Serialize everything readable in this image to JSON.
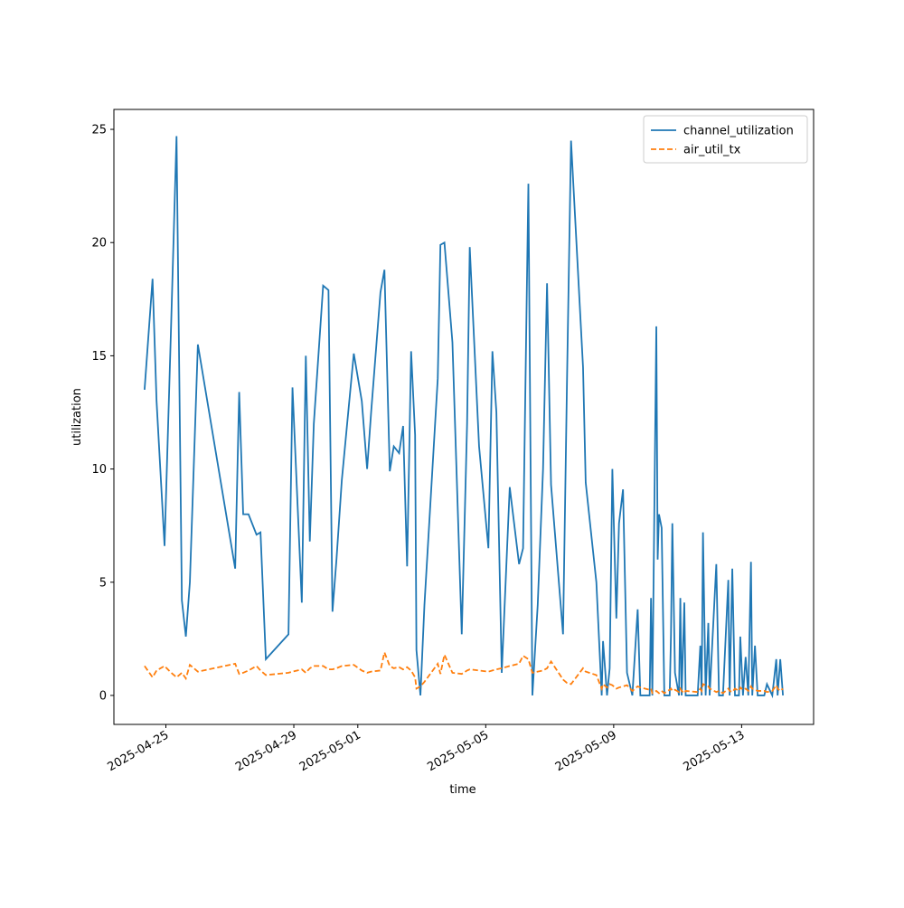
{
  "chart_data": {
    "type": "line",
    "xlabel": "time",
    "ylabel": "utilization",
    "x": [
      "2025-04-24T08:00",
      "2025-04-24T14:00",
      "2025-04-24T17:00",
      "2025-04-24T23:00",
      "2025-04-25T04:00",
      "2025-04-25T08:00",
      "2025-04-25T12:00",
      "2025-04-25T15:00",
      "2025-04-25T18:00",
      "2025-04-26T00:00",
      "2025-04-27T04:00",
      "2025-04-27T07:00",
      "2025-04-27T10:00",
      "2025-04-27T14:00",
      "2025-04-27T20:00",
      "2025-04-27T23:00",
      "2025-04-28T03:00",
      "2025-04-28T20:00",
      "2025-04-28T23:00",
      "2025-04-29T06:00",
      "2025-04-29T09:00",
      "2025-04-29T12:00",
      "2025-04-29T15:00",
      "2025-04-29T22:00",
      "2025-04-30T02:00",
      "2025-04-30T05:00",
      "2025-04-30T08:00",
      "2025-04-30T12:00",
      "2025-04-30T21:00",
      "2025-05-01T03:00",
      "2025-05-01T07:00",
      "2025-05-01T10:00",
      "2025-05-01T17:00",
      "2025-05-01T20:00",
      "2025-05-02T00:00",
      "2025-05-02T03:00",
      "2025-05-02T07:00",
      "2025-05-02T10:00",
      "2025-05-02T13:00",
      "2025-05-02T16:00",
      "2025-05-02T19:00",
      "2025-05-02T20:00",
      "2025-05-02T23:00",
      "2025-05-03T02:00",
      "2025-05-03T12:00",
      "2025-05-03T14:00",
      "2025-05-03T17:00",
      "2025-05-03T23:00",
      "2025-05-04T06:00",
      "2025-05-04T10:00",
      "2025-05-04T12:00",
      "2025-05-04T19:00",
      "2025-05-05T02:00",
      "2025-05-05T05:00",
      "2025-05-05T08:00",
      "2025-05-05T12:00",
      "2025-05-05T18:00",
      "2025-05-06T01:00",
      "2025-05-06T04:00",
      "2025-05-06T08:00",
      "2025-05-06T11:00",
      "2025-05-06T15:00",
      "2025-05-06T19:00",
      "2025-05-06T22:00",
      "2025-05-07T01:00",
      "2025-05-07T10:00",
      "2025-05-07T13:00",
      "2025-05-07T16:00",
      "2025-05-08T01:00",
      "2025-05-08T03:00",
      "2025-05-08T11:00",
      "2025-05-08T15:00",
      "2025-05-08T16:00",
      "2025-05-08T19:00",
      "2025-05-08T21:00",
      "2025-05-08T23:00",
      "2025-05-09T02:00",
      "2025-05-09T04:00",
      "2025-05-09T07:00",
      "2025-05-09T10:00",
      "2025-05-09T14:00",
      "2025-05-09T18:00",
      "2025-05-09T20:00",
      "2025-05-10T03:00",
      "2025-05-10T04:00",
      "2025-05-10T05:00",
      "2025-05-10T08:00",
      "2025-05-10T09:00",
      "2025-05-10T10:00",
      "2025-05-10T12:00",
      "2025-05-10T14:00",
      "2025-05-10T18:00",
      "2025-05-10T19:00",
      "2025-05-10T20:00",
      "2025-05-10T22:00",
      "2025-05-11T01:00",
      "2025-05-11T02:00",
      "2025-05-11T03:00",
      "2025-05-11T05:00",
      "2025-05-11T06:00",
      "2025-05-11T15:00",
      "2025-05-11T17:00",
      "2025-05-11T18:00",
      "2025-05-11T19:00",
      "2025-05-11T21:00",
      "2025-05-11T23:00",
      "2025-05-12T00:00",
      "2025-05-12T05:00",
      "2025-05-12T07:00",
      "2025-05-12T10:00",
      "2025-05-12T14:00",
      "2025-05-12T15:00",
      "2025-05-12T17:00",
      "2025-05-12T19:00",
      "2025-05-12T22:00",
      "2025-05-12T23:00",
      "2025-05-13T01:00",
      "2025-05-13T03:00",
      "2025-05-13T05:00",
      "2025-05-13T07:00",
      "2025-05-13T08:00",
      "2025-05-13T10:00",
      "2025-05-13T12:00",
      "2025-05-13T17:00",
      "2025-05-13T19:00",
      "2025-05-13T23:00",
      "2025-05-14T02:00",
      "2025-05-14T03:00",
      "2025-05-14T05:00",
      "2025-05-14T07:00"
    ],
    "series": [
      {
        "name": "channel_utilization",
        "color": "#1f77b4",
        "linestyle": "solid",
        "values": [
          13.5,
          18.4,
          13,
          6.6,
          16.5,
          24.7,
          4.2,
          2.6,
          5,
          15.5,
          5.6,
          13.4,
          8,
          8,
          7.1,
          7.2,
          1.6,
          2.7,
          13.6,
          4.1,
          15,
          6.8,
          12,
          18.1,
          17.9,
          3.7,
          6,
          9.5,
          15.1,
          13,
          10,
          12.5,
          17.8,
          18.8,
          9.9,
          11,
          10.7,
          11.9,
          5.7,
          15.2,
          11.5,
          2,
          0,
          4,
          14,
          19.9,
          20,
          15.6,
          2.7,
          12,
          19.8,
          11,
          6.5,
          15.2,
          12.5,
          1,
          9.2,
          5.8,
          6.5,
          22.6,
          0,
          4,
          10,
          18.2,
          9.3,
          2.7,
          14,
          24.5,
          14.5,
          9.4,
          5,
          0,
          2.4,
          0,
          1.2,
          10,
          3.4,
          7.6,
          9.1,
          1,
          0,
          3.8,
          0,
          0,
          4.3,
          0,
          16.3,
          6,
          8,
          7.4,
          0,
          0,
          2.7,
          7.6,
          1,
          0,
          4.3,
          0,
          4.1,
          0,
          0,
          2.2,
          0,
          7.2,
          0,
          3.2,
          0,
          5.8,
          0,
          0,
          5.1,
          0,
          5.6,
          0,
          0,
          2.6,
          0,
          1.7,
          0,
          5.9,
          0,
          2.2,
          0,
          0,
          0.5,
          0,
          1.6,
          0,
          1.6,
          0
        ]
      },
      {
        "name": "air_util_tx",
        "color": "#ff7f0e",
        "linestyle": "dashed",
        "values": [
          1.3,
          0.8,
          1.1,
          1.3,
          1.0,
          0.8,
          1.0,
          0.75,
          1.35,
          1.05,
          1.4,
          0.95,
          1.0,
          1.1,
          1.3,
          1.1,
          0.9,
          1.0,
          1.05,
          1.15,
          1.0,
          1.2,
          1.3,
          1.3,
          1.15,
          1.15,
          1.2,
          1.3,
          1.35,
          1.1,
          1.0,
          1.05,
          1.1,
          1.9,
          1.3,
          1.2,
          1.25,
          1.15,
          1.25,
          1.1,
          0.8,
          0.3,
          0.4,
          0.6,
          1.4,
          0.95,
          1.8,
          1.0,
          0.95,
          1.1,
          1.15,
          1.1,
          1.05,
          1.1,
          1.15,
          1.2,
          1.3,
          1.4,
          1.75,
          1.6,
          1.0,
          1.05,
          1.1,
          1.2,
          1.5,
          0.7,
          0.55,
          0.5,
          1.2,
          1.05,
          0.9,
          0.3,
          0.5,
          0.35,
          0.5,
          0.45,
          0.3,
          0.35,
          0.4,
          0.45,
          0.2,
          0.4,
          0.35,
          0.25,
          0.3,
          0.1,
          0.2,
          0.15,
          0.1,
          0.2,
          0.1,
          0.25,
          0.3,
          0.2,
          0.25,
          0.15,
          0.3,
          0.2,
          0.1,
          0.2,
          0.15,
          0.3,
          0.2,
          0.5,
          0.45,
          0.4,
          0.3,
          0.15,
          0.2,
          0.1,
          0.3,
          0.2,
          0.15,
          0.3,
          0.2,
          0.35,
          0.25,
          0.3,
          0.2,
          0.4,
          0.3,
          0.25,
          0.2,
          0.2,
          0.15,
          0.2,
          0.45,
          0.3,
          0.2,
          0.3
        ]
      }
    ],
    "xlim": [
      "2025-04-23T09:00",
      "2025-05-15T06:00"
    ],
    "xticks": [
      "2025-04-25",
      "2025-04-29",
      "2025-05-01",
      "2025-05-05",
      "2025-05-09",
      "2025-05-13"
    ],
    "ylim": [
      -1.28,
      25.88
    ],
    "yticks": [
      0,
      5,
      10,
      15,
      20,
      25
    ],
    "grid": false,
    "legend": "upper right"
  }
}
